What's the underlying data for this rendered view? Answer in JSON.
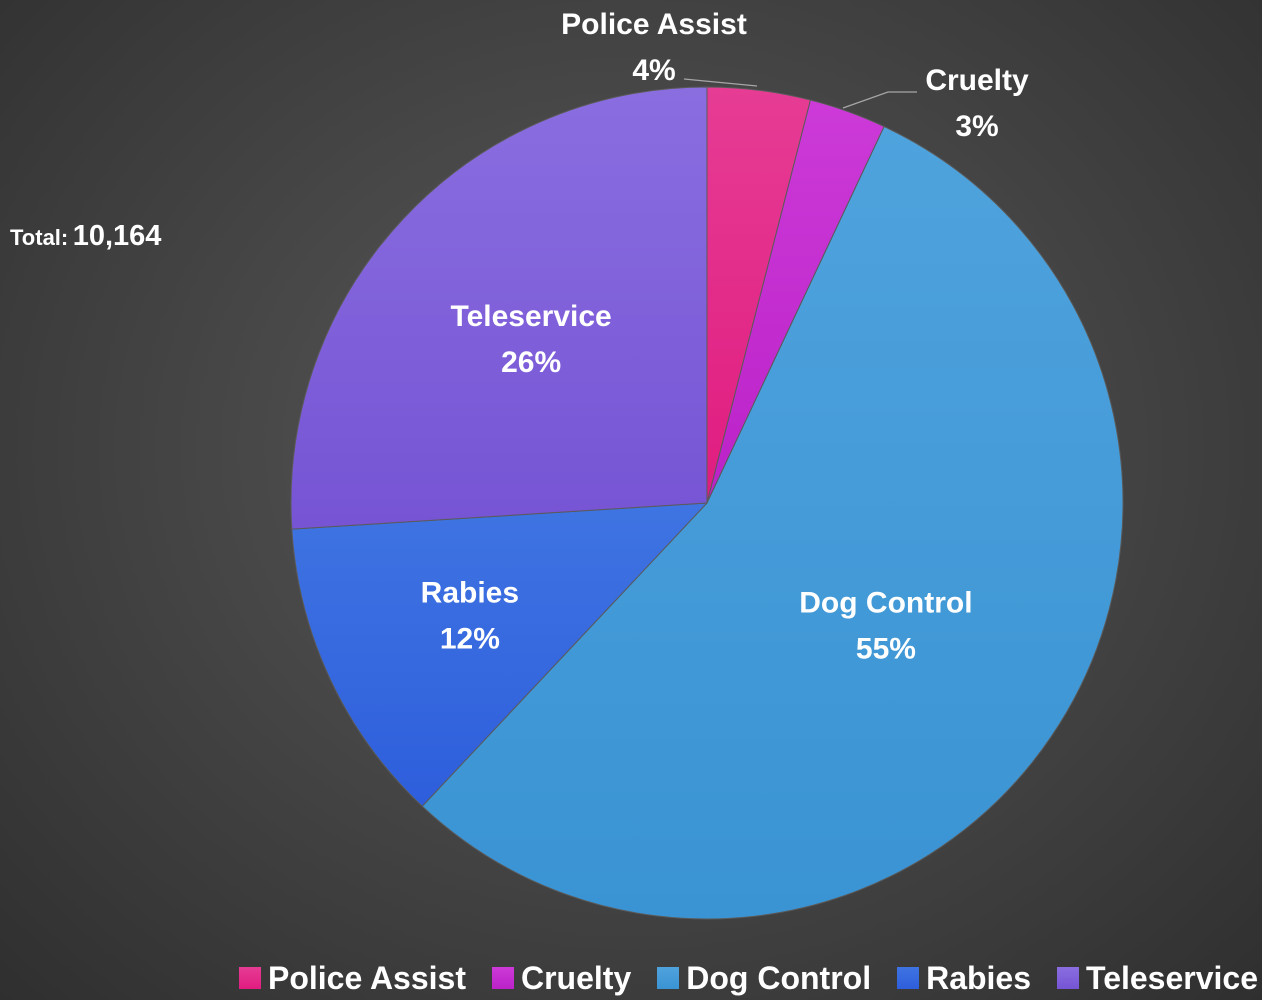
{
  "chart_data": {
    "type": "pie",
    "categories": [
      "Police Assist",
      "Cruelty",
      "Dog Control",
      "Rabies",
      "Teleservice"
    ],
    "values": [
      4,
      3,
      55,
      12,
      26
    ],
    "value_suffix": "%",
    "colors": [
      "#e63c94",
      "#cc3ad8",
      "#4fa3dd",
      "#3f74e2",
      "#8a6ee0"
    ],
    "colors_dark": [
      "#e01c80",
      "#bb22c8",
      "#3a93d3",
      "#2e5edc",
      "#7654d4"
    ],
    "legend_position": "bottom",
    "data_labels": "category and percent",
    "start_angle_deg": 0,
    "direction": "clockwise"
  },
  "total": {
    "label": "Total:",
    "value": "10,164"
  }
}
